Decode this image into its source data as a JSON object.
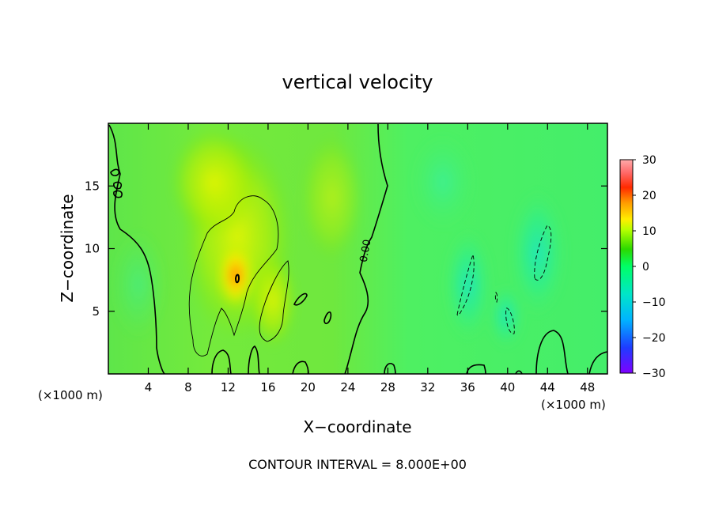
{
  "chart_data": {
    "type": "heatmap",
    "title": "vertical velocity",
    "xlabel": "X−coordinate",
    "ylabel": "Z−coordinate",
    "x_unit_left": "(×1000 m)",
    "x_unit_right": "(×1000 m)",
    "xlim": [
      0,
      50
    ],
    "ylim": [
      0,
      20
    ],
    "x_ticks": [
      4,
      8,
      12,
      16,
      20,
      24,
      28,
      32,
      36,
      40,
      44,
      48
    ],
    "x_tick_labels": [
      "4",
      "8",
      "12",
      "16",
      "20",
      "24",
      "28",
      "32",
      "36",
      "40",
      "44",
      "48"
    ],
    "y_ticks": [
      5,
      10,
      15
    ],
    "y_tick_labels": [
      "5",
      "10",
      "15"
    ],
    "colorbar": {
      "min": -30,
      "max": 30,
      "ticks": [
        30,
        20,
        10,
        0,
        -10,
        -20,
        -30
      ],
      "tick_labels": [
        "30",
        "20",
        "10",
        "0",
        "−10",
        "−20",
        "−30"
      ],
      "colors": [
        "#7f00ff",
        "#1e3cff",
        "#00b4ff",
        "#00e6c8",
        "#00ff66",
        "#2bd900",
        "#b4ff00",
        "#ffee00",
        "#ff9900",
        "#ff2a00",
        "#ff6a6a",
        "#ffaaaa"
      ]
    },
    "contour_label": "0.00",
    "contour_interval_text": "CONTOUR INTERVAL = 8.000E+00",
    "features": [
      {
        "name": "updraft core",
        "x": 13,
        "z": 7.5,
        "w": 12
      },
      {
        "name": "updraft column",
        "x": 12.5,
        "z": 11,
        "w": 6
      },
      {
        "name": "weak updraft",
        "x": 16.5,
        "z": 6,
        "w": 4
      },
      {
        "name": "downdraft",
        "x": 36,
        "z": 7,
        "w": -5
      },
      {
        "name": "downdraft",
        "x": 43.5,
        "z": 10,
        "w": -6
      },
      {
        "name": "downdraft",
        "x": 40,
        "z": 4.5,
        "w": -5
      }
    ]
  }
}
